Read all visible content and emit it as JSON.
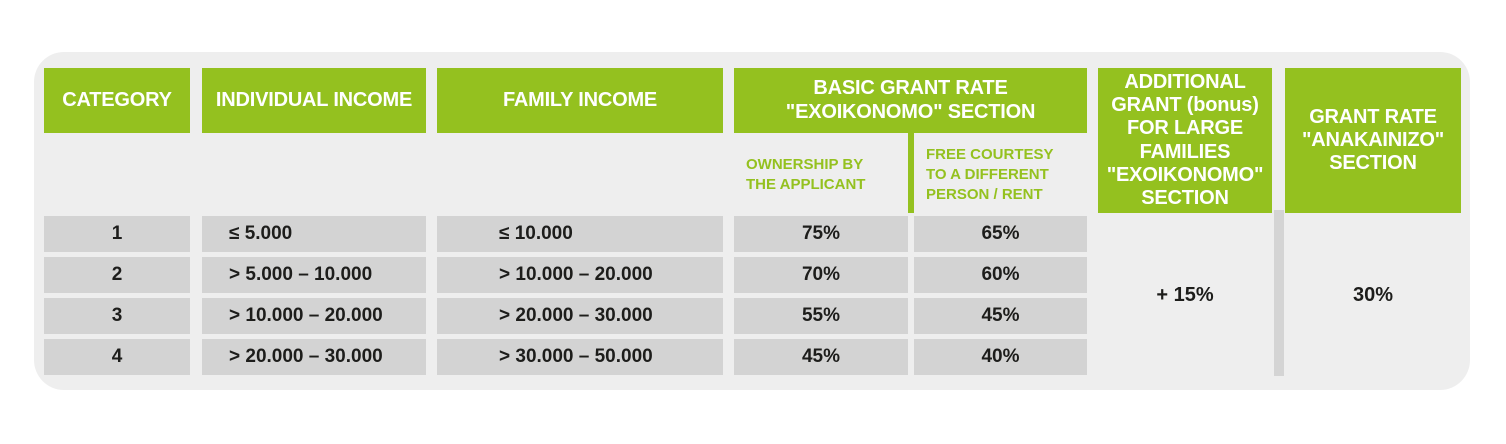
{
  "colors": {
    "accent_green": "#94c11f",
    "card_background": "#eeeeee",
    "cell_gray": "#d3d3d3",
    "divider_gray": "#d4d4d4",
    "header_text": "#ffffff",
    "body_text": "#1d1d1b"
  },
  "chart_data": {
    "type": "table",
    "title": "",
    "columns": [
      {
        "id": "category",
        "label": "CATEGORY"
      },
      {
        "id": "individual_income",
        "label": "INDIVIDUAL INCOME"
      },
      {
        "id": "family_income",
        "label": "FAMILY INCOME"
      },
      {
        "id": "basic_grant_rate",
        "label": "BASIC GRANT RATE\n\"EXOIKONOMO\" SECTION",
        "subcolumns": [
          {
            "id": "ownership",
            "label": "OWNERSHIP BY\nTHE APPLICANT"
          },
          {
            "id": "free_courtesy",
            "label": "FREE COURTESY\nTO A DIFFERENT\nPERSON / RENT"
          }
        ]
      },
      {
        "id": "large_family_bonus",
        "label": "ADDITIONAL\nGRANT (bonus)\nFOR LARGE\nFAMILIES\n\"EXOIKONOMO\"\nSECTION"
      },
      {
        "id": "anakainizo",
        "label": "GRANT RATE\n\"ANAKAINIZO\"\nSECTION"
      }
    ],
    "rows": [
      {
        "category": "1",
        "individual_income": "≤ 5.000",
        "family_income": "≤ 10.000",
        "ownership": "75%",
        "free_courtesy": "65%"
      },
      {
        "category": "2",
        "individual_income": "> 5.000 – 10.000",
        "family_income": "> 10.000 – 20.000",
        "ownership": "70%",
        "free_courtesy": "60%"
      },
      {
        "category": "3",
        "individual_income": "> 10.000 – 20.000",
        "family_income": "> 20.000 – 30.000",
        "ownership": "55%",
        "free_courtesy": "45%"
      },
      {
        "category": "4",
        "individual_income": "> 20.000 – 30.000",
        "family_income": "> 30.000 – 50.000",
        "ownership": "45%",
        "free_courtesy": "40%"
      }
    ],
    "merged_cells": {
      "large_family_bonus": "+ 15%",
      "anakainizo": "30%"
    },
    "layout_hints": {
      "header_style": "green boxes, white bold text",
      "merged_note": "bonus and anakainizo values span all four data rows"
    }
  }
}
